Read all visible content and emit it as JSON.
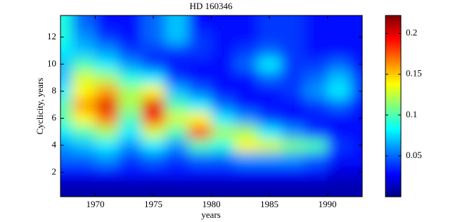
{
  "chart_data": {
    "type": "heatmap",
    "title": "HD 160346",
    "x_label": "years",
    "y_label": "Cyclicity, years",
    "x": [
      1967,
      1969,
      1971,
      1973,
      1975,
      1977,
      1979,
      1981,
      1983,
      1985,
      1987,
      1989,
      1991,
      1993
    ],
    "y": [
      1,
      2,
      3,
      4,
      5,
      6,
      7,
      8,
      9,
      10,
      11,
      12,
      13
    ],
    "z": [
      [
        0.01,
        0.01,
        0.01,
        0.01,
        0.01,
        0.01,
        0.01,
        0.01,
        0.01,
        0.01,
        0.01,
        0.01,
        0.01,
        0.01
      ],
      [
        0.03,
        0.03,
        0.03,
        0.03,
        0.03,
        0.03,
        0.03,
        0.03,
        0.03,
        0.03,
        0.03,
        0.03,
        0.02,
        0.02
      ],
      [
        0.05,
        0.05,
        0.06,
        0.04,
        0.05,
        0.04,
        0.05,
        0.05,
        0.06,
        0.06,
        0.06,
        0.05,
        0.03,
        0.03
      ],
      [
        0.06,
        0.07,
        0.08,
        0.06,
        0.08,
        0.06,
        0.1,
        0.09,
        0.14,
        0.13,
        0.11,
        0.1,
        0.04,
        0.03
      ],
      [
        0.08,
        0.1,
        0.12,
        0.08,
        0.13,
        0.1,
        0.18,
        0.12,
        0.12,
        0.08,
        0.06,
        0.04,
        0.03,
        0.03
      ],
      [
        0.1,
        0.14,
        0.17,
        0.1,
        0.19,
        0.13,
        0.14,
        0.08,
        0.06,
        0.04,
        0.03,
        0.03,
        0.03,
        0.03
      ],
      [
        0.1,
        0.16,
        0.2,
        0.12,
        0.2,
        0.1,
        0.08,
        0.05,
        0.03,
        0.03,
        0.03,
        0.04,
        0.05,
        0.03
      ],
      [
        0.08,
        0.14,
        0.16,
        0.12,
        0.14,
        0.07,
        0.05,
        0.03,
        0.03,
        0.03,
        0.04,
        0.06,
        0.08,
        0.04
      ],
      [
        0.07,
        0.13,
        0.12,
        0.09,
        0.08,
        0.04,
        0.03,
        0.03,
        0.03,
        0.05,
        0.04,
        0.05,
        0.07,
        0.04
      ],
      [
        0.07,
        0.1,
        0.08,
        0.06,
        0.04,
        0.03,
        0.03,
        0.03,
        0.05,
        0.08,
        0.04,
        0.04,
        0.05,
        0.03
      ],
      [
        0.08,
        0.07,
        0.06,
        0.04,
        0.04,
        0.04,
        0.04,
        0.03,
        0.04,
        0.05,
        0.04,
        0.03,
        0.03,
        0.03
      ],
      [
        0.09,
        0.06,
        0.04,
        0.03,
        0.05,
        0.07,
        0.04,
        0.03,
        0.03,
        0.04,
        0.04,
        0.03,
        0.03,
        0.03
      ],
      [
        0.09,
        0.05,
        0.03,
        0.03,
        0.05,
        0.07,
        0.03,
        0.03,
        0.03,
        0.04,
        0.04,
        0.03,
        0.03,
        0.03
      ]
    ],
    "xlim": [
      1967,
      1993
    ],
    "xticks": [
      1970,
      1975,
      1980,
      1985,
      1990
    ],
    "ylim": [
      0.2,
      13.6
    ],
    "yticks": [
      2,
      4,
      6,
      8,
      10,
      12
    ],
    "zlim": [
      0,
      0.222
    ],
    "zticks": [
      0.05,
      0.1,
      0.15,
      0.2
    ],
    "colormap": "jet"
  }
}
